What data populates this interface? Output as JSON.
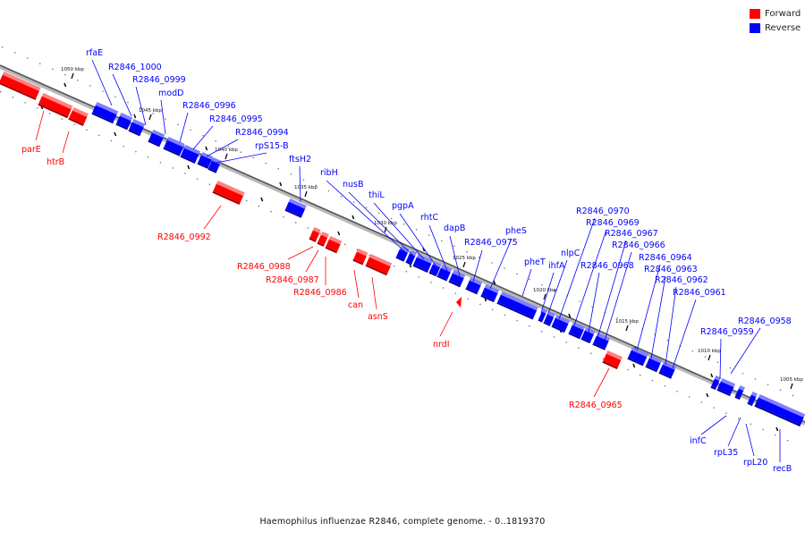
{
  "legend": {
    "forward": {
      "label": "Forward",
      "color": "#ff0000"
    },
    "reverse": {
      "label": "Reverse",
      "color": "#0000ff"
    }
  },
  "caption": "Haemophilus influenzae R2846, complete genome. - 0..1819370",
  "ticks": [
    {
      "label": "1050 kbp"
    },
    {
      "label": "1045 kbp"
    },
    {
      "label": "1040 kbp"
    },
    {
      "label": "1035 kbp"
    },
    {
      "label": "1030 kbp"
    },
    {
      "label": "1025 kbp"
    },
    {
      "label": "1020 kbp"
    },
    {
      "label": "1015 kbp"
    },
    {
      "label": "1010 kbp"
    },
    {
      "label": "1005 kbp"
    }
  ],
  "genes": [
    {
      "name": "parE",
      "strand": "forward"
    },
    {
      "name": "htrB",
      "strand": "forward"
    },
    {
      "name": "rfaE",
      "strand": "reverse"
    },
    {
      "name": "R2846_1000",
      "strand": "reverse"
    },
    {
      "name": "R2846_0999",
      "strand": "reverse"
    },
    {
      "name": "modD",
      "strand": "reverse"
    },
    {
      "name": "R2846_0996",
      "strand": "reverse"
    },
    {
      "name": "R2846_0995",
      "strand": "reverse"
    },
    {
      "name": "R2846_0994",
      "strand": "reverse"
    },
    {
      "name": "rpS15-B",
      "strand": "reverse"
    },
    {
      "name": "R2846_0992",
      "strand": "forward"
    },
    {
      "name": "ftsH2",
      "strand": "reverse"
    },
    {
      "name": "ribH",
      "strand": "reverse"
    },
    {
      "name": "nusB",
      "strand": "reverse"
    },
    {
      "name": "thiL",
      "strand": "reverse"
    },
    {
      "name": "pgpA",
      "strand": "reverse"
    },
    {
      "name": "rhtC",
      "strand": "reverse"
    },
    {
      "name": "dapB",
      "strand": "reverse"
    },
    {
      "name": "R2846_0988",
      "strand": "forward"
    },
    {
      "name": "R2846_0987",
      "strand": "forward"
    },
    {
      "name": "R2846_0986",
      "strand": "forward"
    },
    {
      "name": "can",
      "strand": "forward"
    },
    {
      "name": "asnS",
      "strand": "forward"
    },
    {
      "name": "nrdI",
      "strand": "forward"
    },
    {
      "name": "R2846_0975",
      "strand": "reverse"
    },
    {
      "name": "pheS",
      "strand": "reverse"
    },
    {
      "name": "pheT",
      "strand": "reverse"
    },
    {
      "name": "ihfA",
      "strand": "reverse"
    },
    {
      "name": "nlpC",
      "strand": "reverse"
    },
    {
      "name": "R2846_0970",
      "strand": "reverse"
    },
    {
      "name": "R2846_0969",
      "strand": "reverse"
    },
    {
      "name": "R2846_0968",
      "strand": "reverse"
    },
    {
      "name": "R2846_0967",
      "strand": "reverse"
    },
    {
      "name": "R2846_0966",
      "strand": "reverse"
    },
    {
      "name": "R2846_0964",
      "strand": "reverse"
    },
    {
      "name": "R2846_0963",
      "strand": "reverse"
    },
    {
      "name": "R2846_0962",
      "strand": "reverse"
    },
    {
      "name": "R2846_0961",
      "strand": "reverse"
    },
    {
      "name": "R2846_0965",
      "strand": "forward"
    },
    {
      "name": "R2846_0959",
      "strand": "reverse"
    },
    {
      "name": "R2846_0958",
      "strand": "reverse"
    },
    {
      "name": "infC",
      "strand": "reverse"
    },
    {
      "name": "rpL35",
      "strand": "reverse"
    },
    {
      "name": "rpL20",
      "strand": "reverse"
    },
    {
      "name": "recB",
      "strand": "reverse"
    }
  ]
}
